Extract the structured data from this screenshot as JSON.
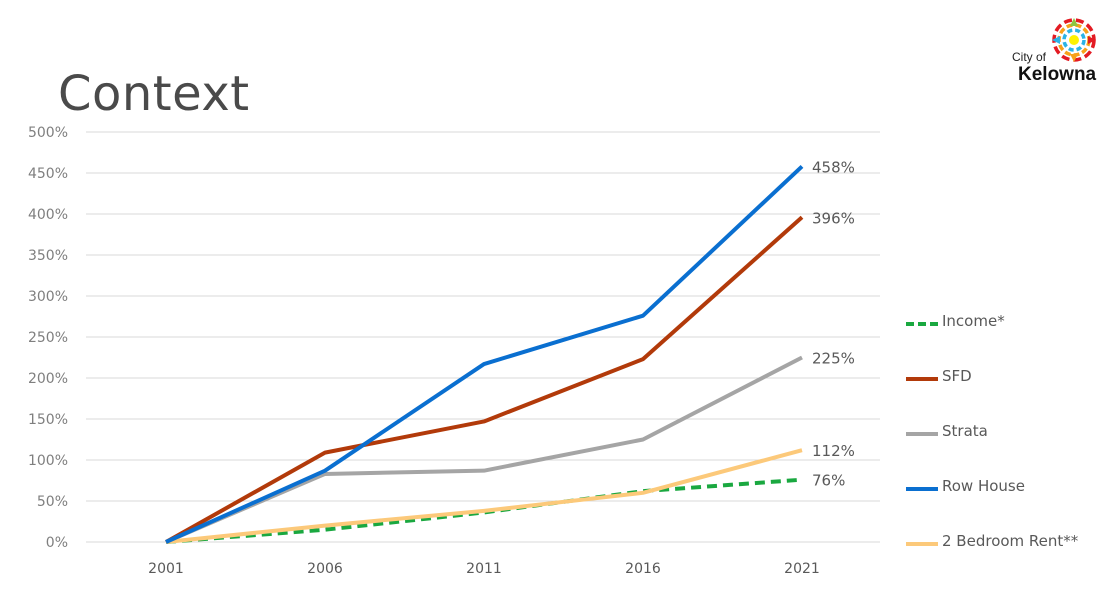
{
  "slide": {
    "title": "Context"
  },
  "logo": {
    "line1": "City of",
    "line2": "Kelowna"
  },
  "chart_data": {
    "type": "line",
    "categories": [
      "2001",
      "2006",
      "2011",
      "2016",
      "2021"
    ],
    "ylim": [
      0,
      500
    ],
    "yticks": [
      0,
      50,
      100,
      150,
      200,
      250,
      300,
      350,
      400,
      450,
      500
    ],
    "ytick_labels": [
      "0%",
      "50%",
      "100%",
      "150%",
      "200%",
      "250%",
      "300%",
      "350%",
      "400%",
      "450%",
      "500%"
    ],
    "grid": "horizontal",
    "legend_position": "right",
    "series": [
      {
        "name": "Income*",
        "values": [
          0,
          15,
          36,
          62,
          76
        ],
        "color": "#1aa840",
        "dashed": true,
        "end_label": "76%"
      },
      {
        "name": "SFD",
        "values": [
          0,
          109,
          147,
          223,
          396
        ],
        "color": "#b23a0a",
        "dashed": false,
        "end_label": "396%"
      },
      {
        "name": "Strata",
        "values": [
          0,
          83,
          87,
          125,
          225
        ],
        "color": "#a5a5a5",
        "dashed": false,
        "end_label": "225%"
      },
      {
        "name": "Row House",
        "values": [
          0,
          87,
          217,
          276,
          458
        ],
        "color": "#0a6fd0",
        "dashed": false,
        "end_label": "458%"
      },
      {
        "name": "2 Bedroom Rent**",
        "values": [
          0,
          20,
          38,
          60,
          112
        ],
        "color": "#fcc97a",
        "dashed": false,
        "end_label": "112%"
      }
    ]
  }
}
